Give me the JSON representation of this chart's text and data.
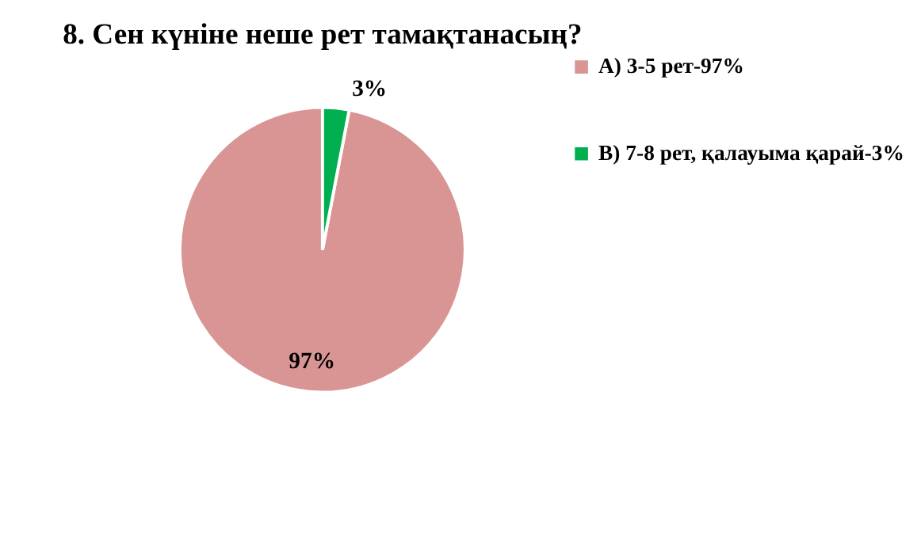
{
  "chart_data": {
    "type": "pie",
    "title": "8. Сен күніне неше рет тамақтанасың?",
    "categories": [
      "А) 3-5 рет-97%",
      "В) 7-8 рет, қалауыма қарай-3%"
    ],
    "values": [
      97,
      3
    ],
    "colors": [
      "#d99594",
      "#00b050"
    ],
    "value_labels": [
      "97%",
      "3%"
    ],
    "legend": "right"
  }
}
